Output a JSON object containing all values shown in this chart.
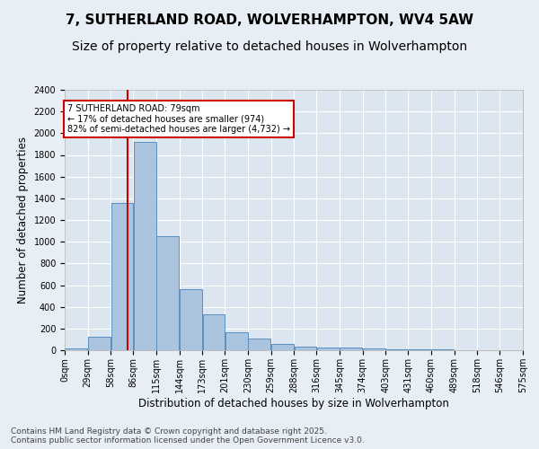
{
  "title_line1": "7, SUTHERLAND ROAD, WOLVERHAMPTON, WV4 5AW",
  "title_line2": "Size of property relative to detached houses in Wolverhampton",
  "xlabel": "Distribution of detached houses by size in Wolverhampton",
  "ylabel": "Number of detached properties",
  "footnote": "Contains HM Land Registry data © Crown copyright and database right 2025.\nContains public sector information licensed under the Open Government Licence v3.0.",
  "bar_edges": [
    0,
    29,
    58,
    86,
    115,
    144,
    173,
    201,
    230,
    259,
    288,
    316,
    345,
    374,
    403,
    431,
    460,
    489,
    518,
    546,
    575
  ],
  "bar_heights": [
    15,
    125,
    1360,
    1920,
    1055,
    560,
    335,
    165,
    110,
    62,
    37,
    28,
    22,
    15,
    8,
    5,
    5,
    2,
    2,
    2
  ],
  "bar_color": "#aac4e0",
  "bar_edge_color": "#5a8fc0",
  "property_size": 79,
  "vline_color": "#cc0000",
  "annotation_text": "7 SUTHERLAND ROAD: 79sqm\n← 17% of detached houses are smaller (974)\n82% of semi-detached houses are larger (4,732) →",
  "annotation_box_color": "#cc0000",
  "ylim": [
    0,
    2400
  ],
  "yticks": [
    0,
    200,
    400,
    600,
    800,
    1000,
    1200,
    1400,
    1600,
    1800,
    2000,
    2200,
    2400
  ],
  "bg_color": "#e8eef5",
  "axes_bg_color": "#dce6f0",
  "grid_color": "#ffffff",
  "title1_fontsize": 11,
  "title2_fontsize": 10,
  "label_fontsize": 8.5,
  "tick_fontsize": 7,
  "footnote_fontsize": 6.5
}
